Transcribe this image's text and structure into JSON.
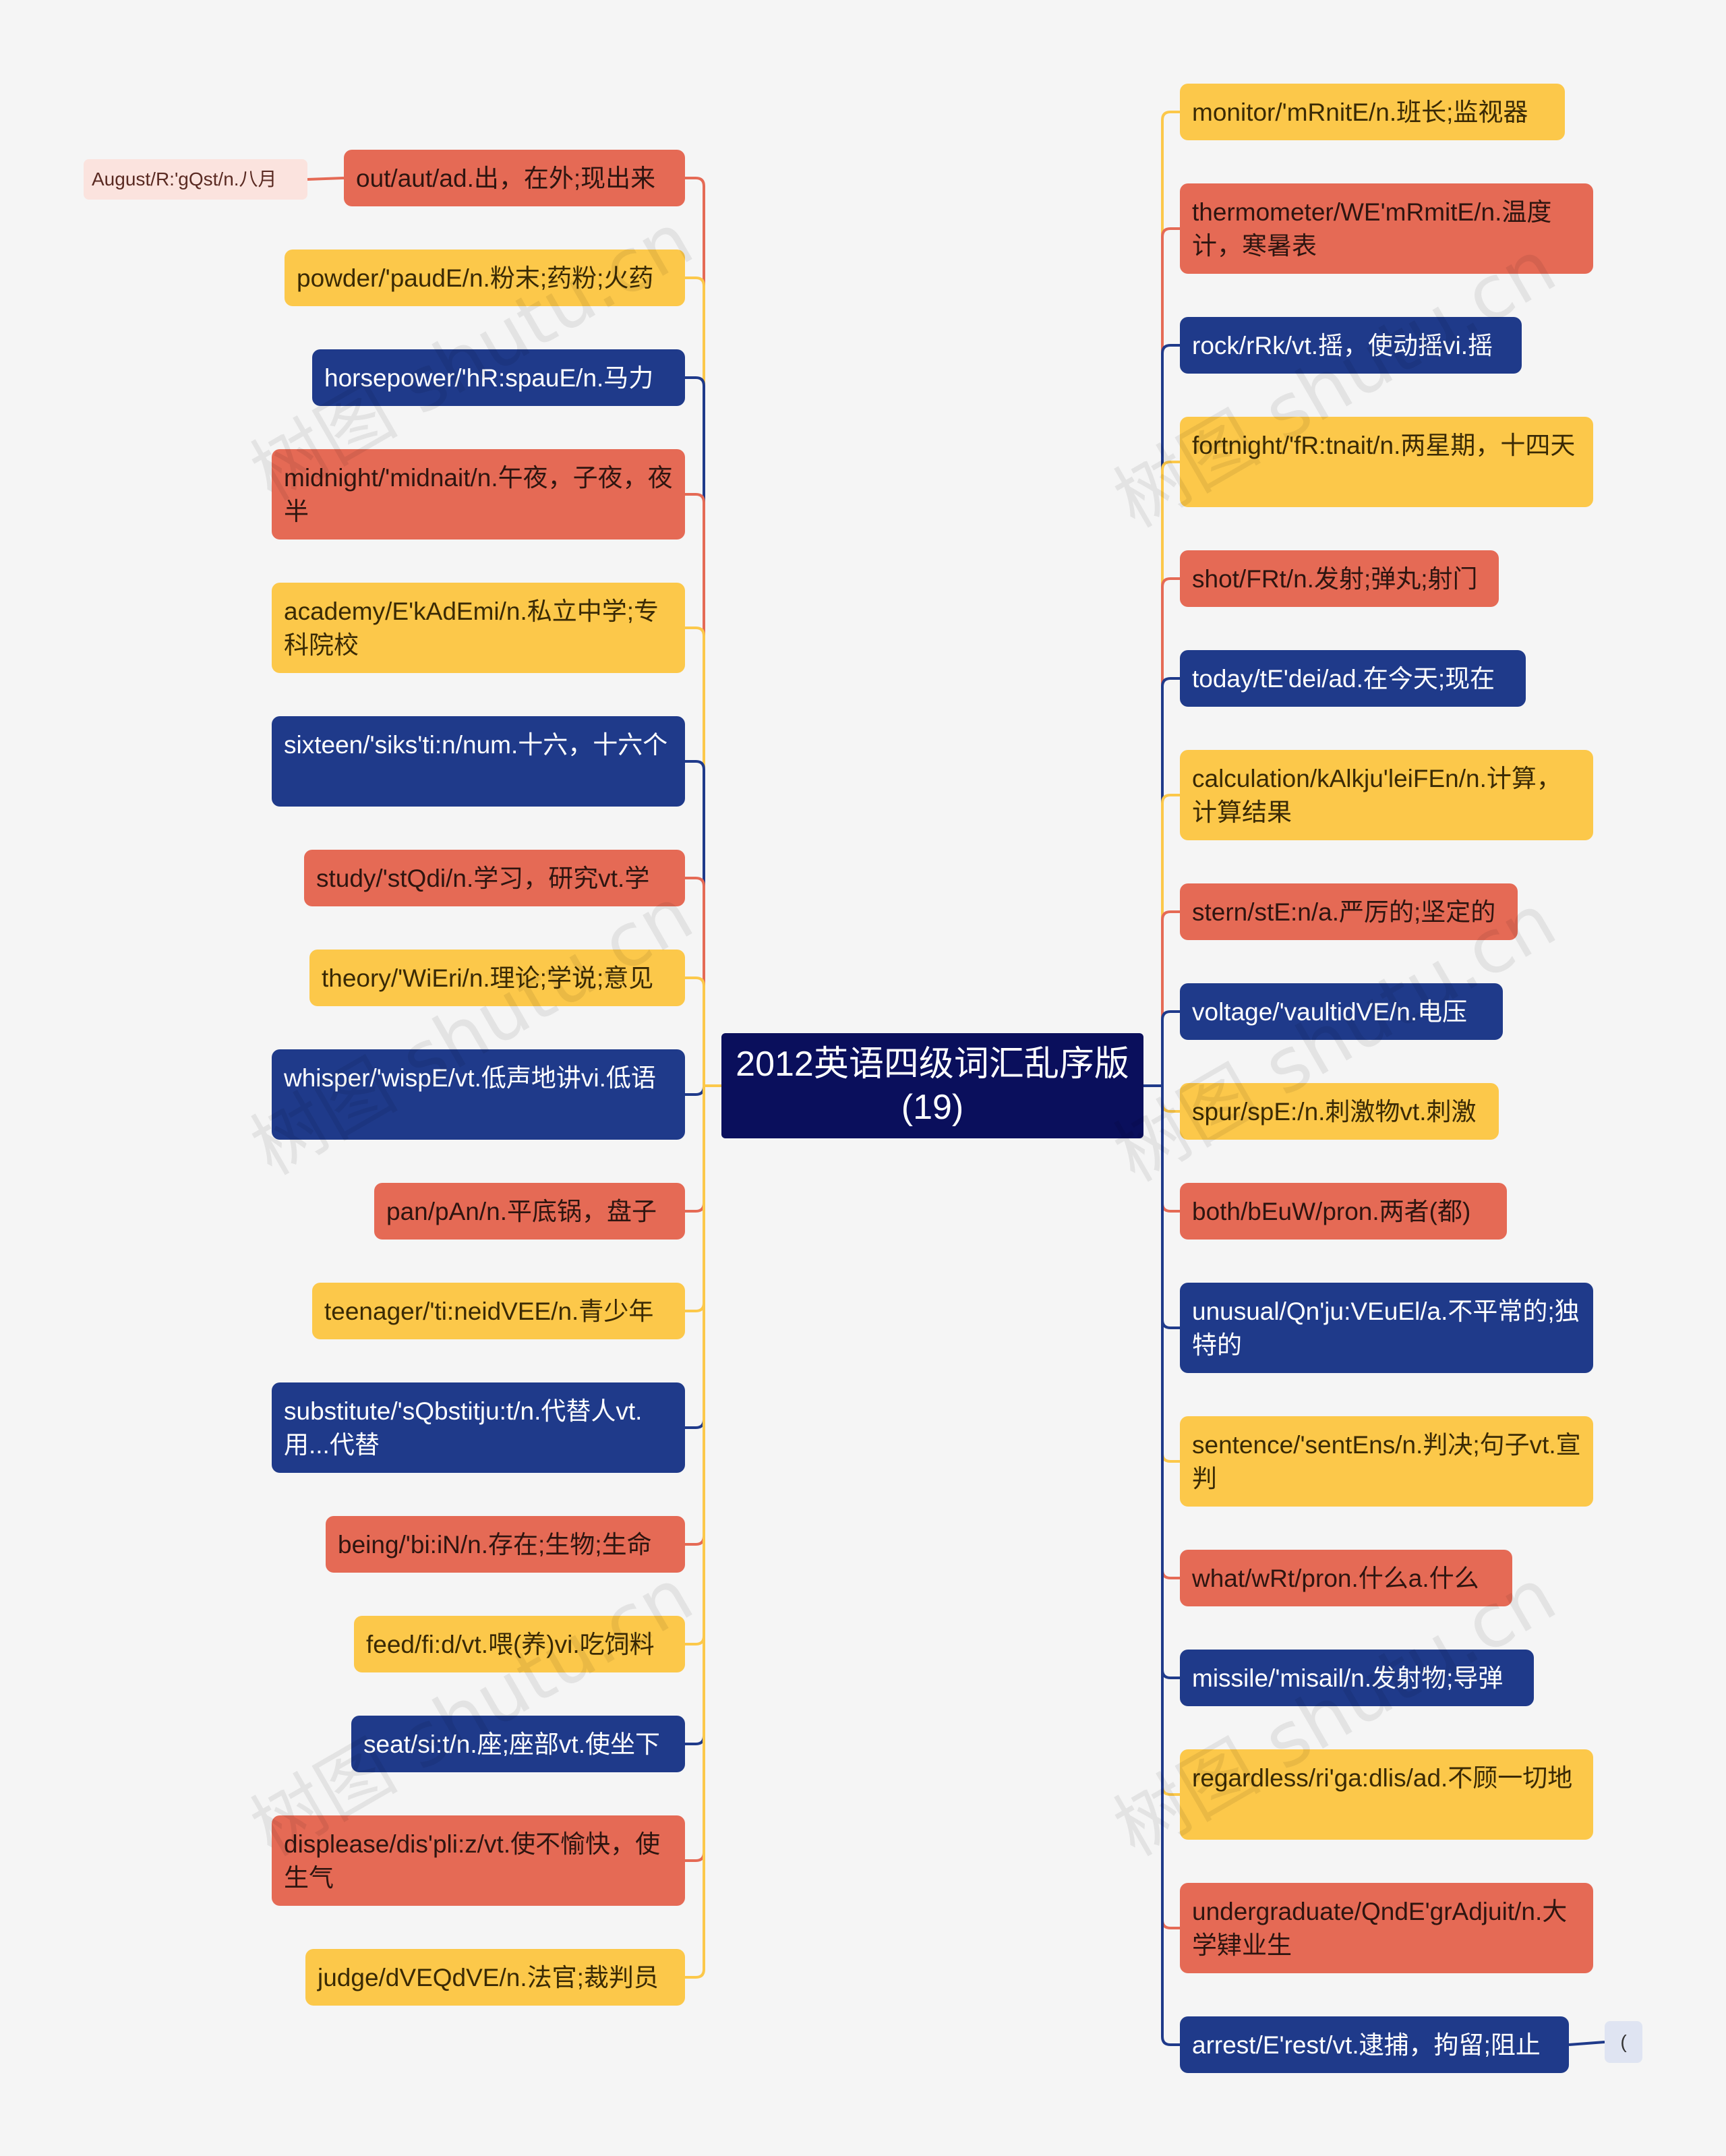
{
  "center": {
    "title": "2012英语四级词汇乱序版(19)"
  },
  "watermark": "树图 shutu.cn",
  "colors": {
    "orange": "#e56a55",
    "yellow": "#fcc84a",
    "navy": "#1f3a8a",
    "center": "#0a0f5c",
    "sub": "#fbe3de"
  },
  "left_nodes": [
    {
      "text": "out/aut/ad.出，在外;现出来",
      "color": "orange"
    },
    {
      "text": "powder/'paudE/n.粉末;药粉;火药",
      "color": "yellow"
    },
    {
      "text": "horsepower/'hR:spauE/n.马力",
      "color": "navy"
    },
    {
      "text": "midnight/'midnait/n.午夜，子夜，夜半",
      "color": "orange"
    },
    {
      "text": "academy/E'kAdEmi/n.私立中学;专科院校",
      "color": "yellow"
    },
    {
      "text": "sixteen/'siks'ti:n/num.十六，十六个",
      "color": "navy"
    },
    {
      "text": "study/'stQdi/n.学习，研究vt.学",
      "color": "orange"
    },
    {
      "text": "theory/'WiEri/n.理论;学说;意见",
      "color": "yellow"
    },
    {
      "text": "whisper/'wispE/vt.低声地讲vi.低语",
      "color": "navy"
    },
    {
      "text": "pan/pAn/n.平底锅，盘子",
      "color": "orange"
    },
    {
      "text": "teenager/'ti:neidVEE/n.青少年",
      "color": "yellow"
    },
    {
      "text": "substitute/'sQbstitju:t/n.代替人vt.用...代替",
      "color": "navy"
    },
    {
      "text": "being/'bi:iN/n.存在;生物;生命",
      "color": "orange"
    },
    {
      "text": "feed/fi:d/vt.喂(养)vi.吃饲料",
      "color": "yellow"
    },
    {
      "text": "seat/si:t/n.座;座部vt.使坐下",
      "color": "navy"
    },
    {
      "text": "displease/dis'pli:z/vt.使不愉快，使生气",
      "color": "orange"
    },
    {
      "text": "judge/dVEQdVE/n.法官;裁判员",
      "color": "yellow"
    }
  ],
  "right_nodes": [
    {
      "text": "monitor/'mRnitE/n.班长;监视器",
      "color": "yellow"
    },
    {
      "text": "thermometer/WE'mRmitE/n.温度计，寒暑表",
      "color": "orange"
    },
    {
      "text": "rock/rRk/vt.摇，使动摇vi.摇",
      "color": "navy"
    },
    {
      "text": "fortnight/'fR:tnait/n.两星期，十四天",
      "color": "yellow"
    },
    {
      "text": "shot/FRt/n.发射;弹丸;射门",
      "color": "orange"
    },
    {
      "text": "today/tE'dei/ad.在今天;现在",
      "color": "navy"
    },
    {
      "text": "calculation/kAlkju'leiFEn/n.计算，计算结果",
      "color": "yellow"
    },
    {
      "text": "stern/stE:n/a.严厉的;坚定的",
      "color": "orange"
    },
    {
      "text": "voltage/'vaultidVE/n.电压",
      "color": "navy"
    },
    {
      "text": "spur/spE:/n.刺激物vt.刺激",
      "color": "yellow"
    },
    {
      "text": "both/bEuW/pron.两者(都)",
      "color": "orange"
    },
    {
      "text": "unusual/Qn'ju:VEuEl/a.不平常的;独特的",
      "color": "navy"
    },
    {
      "text": "sentence/'sentEns/n.判决;句子vt.宣判",
      "color": "yellow"
    },
    {
      "text": "what/wRt/pron.什么a.什么",
      "color": "orange"
    },
    {
      "text": "missile/'misail/n.发射物;导弹",
      "color": "navy"
    },
    {
      "text": "regardless/ri'ga:dlis/ad.不顾一切地",
      "color": "yellow"
    },
    {
      "text": "undergraduate/QndE'grAdjuit/n.大学肄业生",
      "color": "orange"
    },
    {
      "text": "arrest/E'rest/vt.逮捕，拘留;阻止",
      "color": "navy"
    }
  ],
  "sub_left": {
    "text": "August/R:'gQst/n.八月"
  },
  "sub_right": {
    "text": "("
  }
}
